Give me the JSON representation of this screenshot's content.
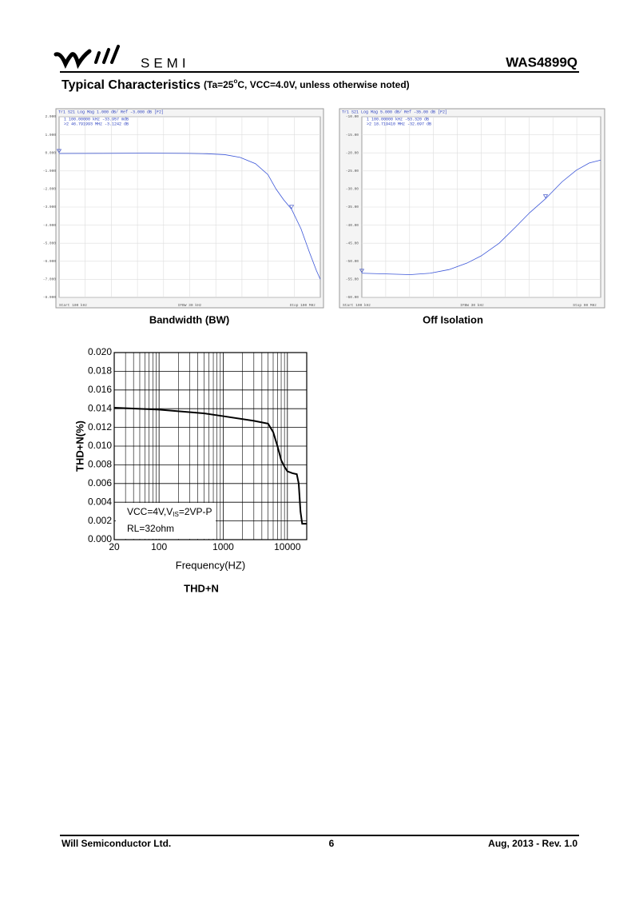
{
  "header": {
    "brand": "SEMI",
    "part_number": "WAS4899Q"
  },
  "section": {
    "title": "Typical Characteristics",
    "conditions": [
      "(Ta=25",
      "o",
      "C, VCC=4.0V, unless otherwise noted)"
    ]
  },
  "chart_data": [
    {
      "type": "line",
      "caption": "Bandwidth (BW)",
      "color": "#3a55d8",
      "xscale": "log",
      "grid": true,
      "trace_header": "Tr1 S21 Log Mag 1.000 dB/ Ref -3.000 dB [F2]",
      "markers": [
        {
          "label": "1  100.00000 kHz -33.957 mdB",
          "x": 0.1,
          "y": -0.033957
        },
        {
          "label": ">2  46.791993 MHz -3.1242 dB",
          "x": 46.791993,
          "y": -3.1242
        }
      ],
      "footer": [
        "Start 100 kHz",
        "IFBW 30 kHz",
        "Stop 100 MHz"
      ],
      "x": [
        0.1,
        0.3,
        1,
        3,
        5,
        8,
        12,
        18,
        25,
        31,
        38,
        46.79,
        60,
        75,
        90,
        100
      ],
      "values": [
        -0.034,
        -0.03,
        -0.02,
        -0.03,
        -0.05,
        -0.1,
        -0.25,
        -0.6,
        -1.2,
        -2.0,
        -2.6,
        -3.12,
        -4.2,
        -5.5,
        -6.5,
        -7.0
      ],
      "xlim": [
        0.1,
        100
      ],
      "ylim": [
        -8,
        2
      ],
      "yticks": [
        {
          "value": 2,
          "label": "2.000"
        },
        {
          "value": 1,
          "label": "1.000"
        },
        {
          "value": 0,
          "label": "0.000"
        },
        {
          "value": -1,
          "label": "-1.000"
        },
        {
          "value": -2,
          "label": "-2.000"
        },
        {
          "value": -3,
          "label": "-3.000"
        },
        {
          "value": -4,
          "label": "-4.000"
        },
        {
          "value": -5,
          "label": "-5.000"
        },
        {
          "value": -6,
          "label": "-6.000"
        },
        {
          "value": -7,
          "label": "-7.000"
        },
        {
          "value": -8,
          "label": "-8.000"
        }
      ]
    },
    {
      "type": "line",
      "caption": "Off Isolation",
      "color": "#3a55d8",
      "xscale": "log",
      "grid": true,
      "trace_header": "Tr1 S21 Log Mag 5.000 dB/ Ref -35.00 dB [F2]",
      "markers": [
        {
          "label": "1  100.00000 kHz -53.320 dB",
          "x": 0.1,
          "y": -53.32
        },
        {
          "label": ">2  18.719410 MHz -32.697 dB",
          "x": 18.71941,
          "y": -32.697
        }
      ],
      "footer": [
        "Start 100 kHz",
        "IFBW 30 kHz",
        "Stop 90 MHz"
      ],
      "x": [
        0.1,
        0.2,
        0.4,
        0.7,
        1.2,
        2,
        3,
        5,
        8,
        12,
        18.72,
        30,
        45,
        65,
        90
      ],
      "values": [
        -53.3,
        -53.5,
        -53.7,
        -53.3,
        -52.3,
        -50.5,
        -48.5,
        -45,
        -40.5,
        -36.5,
        -32.7,
        -28,
        -24.8,
        -22.8,
        -22.0
      ],
      "xlim": [
        0.1,
        90
      ],
      "ylim": [
        -60,
        -10
      ],
      "yticks": [
        {
          "value": -10,
          "label": "-10.00"
        },
        {
          "value": -15,
          "label": "-15.00"
        },
        {
          "value": -20,
          "label": "-20.00"
        },
        {
          "value": -25,
          "label": "-25.00"
        },
        {
          "value": -30,
          "label": "-30.00"
        },
        {
          "value": -35,
          "label": "-35.00"
        },
        {
          "value": -40,
          "label": "-40.00"
        },
        {
          "value": -45,
          "label": "-45.00"
        },
        {
          "value": -50,
          "label": "-50.00"
        },
        {
          "value": -55,
          "label": "-55.00"
        },
        {
          "value": -60,
          "label": "-60.00"
        }
      ]
    },
    {
      "type": "line",
      "caption": "THD+N",
      "color": "#000000",
      "xscale": "log",
      "grid": true,
      "minor_grid": true,
      "xlabel": "Frequency(HZ)",
      "ylabel": "THD+N(%)",
      "annotation": {
        "parts": [
          "VCC=4V,V",
          "IS",
          "=2VP-P"
        ],
        "line2": "RL=32ohm"
      },
      "x": [
        20,
        100,
        500,
        1000,
        3000,
        5000,
        6000,
        7000,
        8000,
        9000,
        10000,
        12000,
        14000,
        15000,
        16000,
        17000,
        20000
      ],
      "values": [
        0.0141,
        0.0139,
        0.0135,
        0.0132,
        0.0127,
        0.0124,
        0.0115,
        0.01,
        0.0085,
        0.0078,
        0.0073,
        0.0071,
        0.007,
        0.006,
        0.003,
        0.0017,
        0.0017
      ],
      "xlim": [
        20,
        20000
      ],
      "ylim": [
        0,
        0.02
      ],
      "xticks": [
        20,
        100,
        1000,
        10000
      ],
      "yticks": [
        {
          "value": 0,
          "label": "0.000"
        },
        {
          "value": 0.002,
          "label": "0.002"
        },
        {
          "value": 0.004,
          "label": "0.004"
        },
        {
          "value": 0.006,
          "label": "0.006"
        },
        {
          "value": 0.008,
          "label": "0.008"
        },
        {
          "value": 0.01,
          "label": "0.010"
        },
        {
          "value": 0.012,
          "label": "0.012"
        },
        {
          "value": 0.014,
          "label": "0.014"
        },
        {
          "value": 0.016,
          "label": "0.016"
        },
        {
          "value": 0.018,
          "label": "0.018"
        },
        {
          "value": 0.02,
          "label": "0.020"
        }
      ]
    }
  ],
  "footer": {
    "company": "Will Semiconductor Ltd.",
    "page": "6",
    "revision": "Aug, 2013 - Rev. 1.0"
  }
}
